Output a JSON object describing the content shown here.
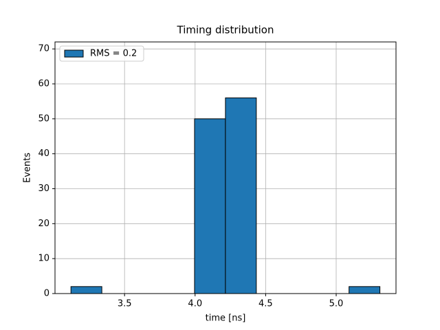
{
  "chart_data": {
    "type": "histogram",
    "title": "Timing distribution",
    "x_label": "time [ns]",
    "y_label": "Events",
    "bins": [
      3.12,
      3.339,
      3.558,
      3.777,
      3.996,
      4.215,
      4.434,
      4.653,
      4.872,
      5.091,
      5.31
    ],
    "series": [
      {
        "name": "RMS = 0.2",
        "color": "#1f77b4",
        "values": [
          2,
          0,
          0,
          0,
          50,
          56,
          0,
          0,
          0,
          2
        ]
      }
    ],
    "xlim": [
      3.007,
      5.424
    ],
    "ylim": [
      0,
      72
    ],
    "xticks": [
      3.5,
      {
        "value": 4.0,
        "label": "4.0"
      },
      4.5,
      {
        "value": 5.0,
        "label": "5.0"
      }
    ],
    "yticks": [
      0,
      10,
      20,
      30,
      40,
      50,
      60,
      70
    ],
    "grid": true,
    "legend": "upper-left"
  }
}
